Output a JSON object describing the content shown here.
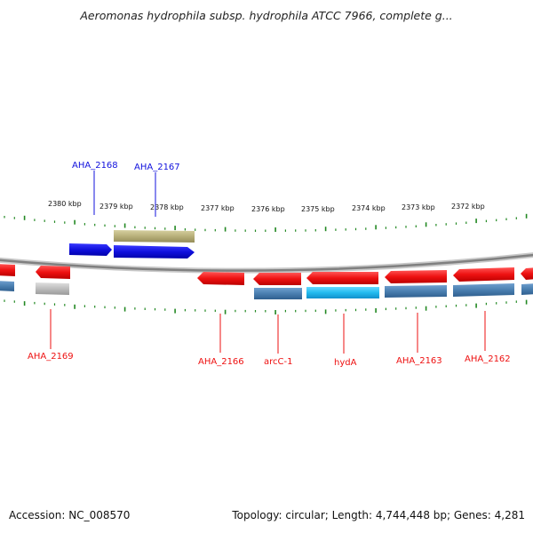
{
  "title": "Aeromonas hydrophila subsp. hydrophila ATCC 7966, complete g...",
  "footer": {
    "accession": "Accession: NC_008570",
    "summary": "Topology: circular; Length: 4,744,448 bp; Genes: 4,281"
  },
  "colors": {
    "forward_gene": "#1010dd",
    "reverse_gene": "#ee1111",
    "blue_track": "#4a7fb0",
    "cyan_track": "#22bbee",
    "grey_track": "#bdbdbd",
    "olive_track": "#b8b07a",
    "tick": "#228822",
    "backbone": "#888888"
  },
  "ruler_labels": [
    "2380 kbp",
    "2379 kbp",
    "2378 kbp",
    "2377 kbp",
    "2376 kbp",
    "2375 kbp",
    "2374 kbp",
    "2373 kbp",
    "2372 kbp"
  ],
  "gene_labels": {
    "forward": [
      "AHA_2168",
      "AHA_2167"
    ],
    "reverse": [
      "AHA_2169",
      "AHA_2166",
      "arcC-1",
      "hydA",
      "AHA_2163",
      "AHA_2162"
    ]
  }
}
